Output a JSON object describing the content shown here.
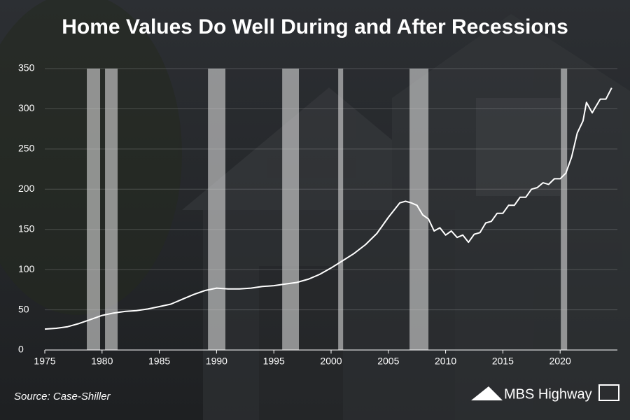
{
  "chart_data": {
    "type": "line",
    "title": "Home Values Do Well During and After Recessions",
    "source": "Source: Case-Shiller",
    "logo": "MBS Highway",
    "xlim": [
      1975,
      2025
    ],
    "xticks": [
      1975,
      1980,
      1985,
      1990,
      1995,
      2000,
      2005,
      2010,
      2015,
      2020
    ],
    "ylim": [
      0,
      350
    ],
    "yticks": [
      0,
      50,
      100,
      150,
      200,
      250,
      300,
      350
    ],
    "grid": true,
    "recession_color": "#d9d9d9",
    "recessions": [
      [
        1978.67,
        1979.83
      ],
      [
        1980.26,
        1981.36
      ],
      [
        1989.25,
        1990.77
      ],
      [
        1995.73,
        1997.19
      ],
      [
        2000.62,
        2001.05
      ],
      [
        2006.85,
        2008.5
      ],
      [
        2020.06,
        2020.61
      ]
    ],
    "series": [
      {
        "color": "#ffffff",
        "x": [
          1975,
          1976,
          1977,
          1978,
          1979,
          1980,
          1981,
          1982,
          1983,
          1984,
          1985,
          1986,
          1987,
          1988,
          1989,
          1990,
          1991,
          1992,
          1993,
          1994,
          1995,
          1996,
          1997,
          1998,
          1999,
          2000,
          2001,
          2002,
          2003,
          2004,
          2005,
          2006,
          2006.5,
          2007,
          2007.5,
          2008,
          2008.5,
          2009,
          2009.5,
          2010,
          2010.5,
          2011,
          2011.5,
          2012,
          2012.5,
          2013,
          2013.5,
          2014,
          2014.5,
          2015,
          2015.5,
          2016,
          2016.5,
          2017,
          2017.5,
          2018,
          2018.5,
          2019,
          2019.5,
          2020,
          2020.5,
          2021,
          2021.5,
          2022,
          2022.3,
          2022.8,
          2023,
          2023.5,
          2024,
          2024.5
        ],
        "values": [
          26,
          27,
          29,
          33,
          38,
          43,
          46,
          48,
          49,
          51,
          54,
          57,
          63,
          69,
          74,
          77,
          76,
          76,
          77,
          79,
          80,
          82,
          84,
          88,
          94,
          102,
          111,
          120,
          131,
          145,
          165,
          183,
          185,
          183,
          180,
          168,
          163,
          148,
          152,
          143,
          148,
          140,
          143,
          134,
          144,
          146,
          158,
          160,
          170,
          170,
          180,
          180,
          190,
          190,
          200,
          202,
          208,
          206,
          213,
          213,
          220,
          240,
          270,
          285,
          308,
          295,
          300,
          312,
          312,
          326
        ]
      }
    ]
  }
}
